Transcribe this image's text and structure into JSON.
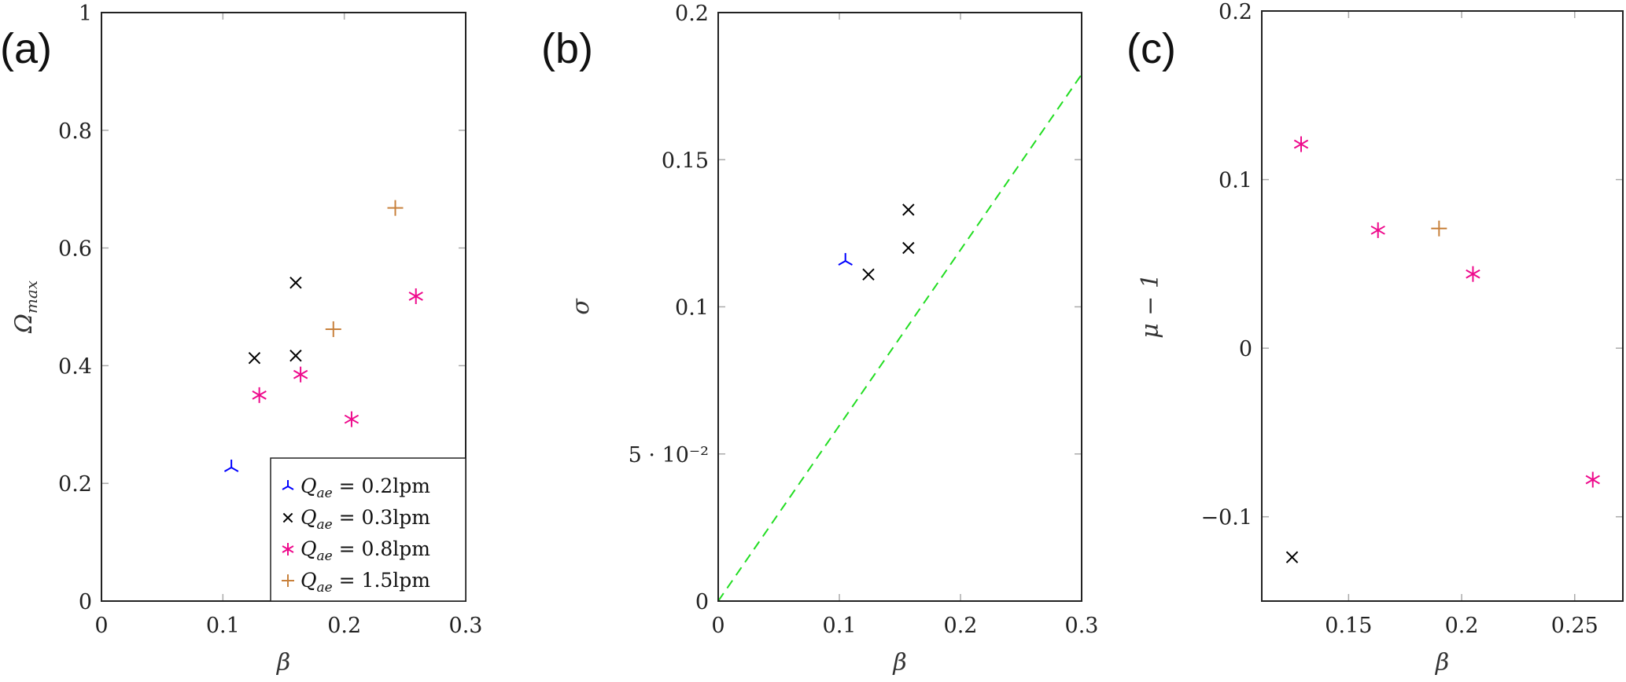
{
  "chart_data": [
    {
      "type": "scatter",
      "panel_label": "(a)",
      "xlabel": "β",
      "ylabel": "Ω",
      "ylabel_sub": "max",
      "xlim": [
        0,
        0.3
      ],
      "ylim": [
        0,
        1
      ],
      "xticks": [
        0,
        0.1,
        0.2,
        0.3
      ],
      "xtick_labels": [
        "0",
        "0.1",
        "0.2",
        "0.3"
      ],
      "yticks": [
        0,
        0.2,
        0.4,
        0.6,
        0.8,
        1
      ],
      "ytick_labels": [
        "0",
        "0.2",
        "0.4",
        "0.6",
        "0.8",
        "1"
      ],
      "legend_placement": "bottom-right",
      "series": [
        {
          "name": "Q_ae = 0.2lpm",
          "legend_sym": "Q",
          "legend_sub": "ae",
          "legend_text": " = 0.2lpm",
          "marker": "tri",
          "color": "#0000ff",
          "x": [
            0.107
          ],
          "y": [
            0.227
          ]
        },
        {
          "name": "Q_ae = 0.3lpm",
          "legend_sym": "Q",
          "legend_sub": "ae",
          "legend_text": " = 0.3lpm",
          "marker": "x",
          "color": "#000000",
          "x": [
            0.126,
            0.16,
            0.16
          ],
          "y": [
            0.413,
            0.541,
            0.417
          ]
        },
        {
          "name": "Q_ae = 0.8lpm",
          "legend_sym": "Q",
          "legend_sub": "ae",
          "legend_text": " = 0.8lpm",
          "marker": "star",
          "color": "#ee0a8c",
          "x": [
            0.13,
            0.164,
            0.206,
            0.259
          ],
          "y": [
            0.35,
            0.385,
            0.309,
            0.518
          ]
        },
        {
          "name": "Q_ae = 1.5lpm",
          "legend_sym": "Q",
          "legend_sub": "ae",
          "legend_text": " = 1.5lpm",
          "marker": "plus",
          "color": "#c8813c",
          "x": [
            0.191,
            0.242
          ],
          "y": [
            0.462,
            0.668
          ]
        }
      ]
    },
    {
      "type": "scatter",
      "panel_label": "(b)",
      "xlabel": "β",
      "ylabel": "σ",
      "ylabel_sub": "",
      "xlim": [
        0,
        0.3
      ],
      "ylim": [
        0,
        0.2
      ],
      "xticks": [
        0,
        0.1,
        0.2,
        0.3
      ],
      "xtick_labels": [
        "0",
        "0.1",
        "0.2",
        "0.3"
      ],
      "yticks": [
        0,
        0.05,
        0.1,
        0.15,
        0.2
      ],
      "ytick_labels": [
        "0",
        "5 · 10⁻²",
        "0.1",
        "0.15",
        "0.2"
      ],
      "reference_line": {
        "x": [
          0,
          0.3
        ],
        "y": [
          0,
          0.179
        ],
        "color": "#22dd22",
        "style": "dashed"
      },
      "series": [
        {
          "name": "Q_ae = 0.2lpm",
          "marker": "tri",
          "color": "#0000ff",
          "x": [
            0.105
          ],
          "y": [
            0.1156
          ]
        },
        {
          "name": "Q_ae = 0.3lpm",
          "marker": "x",
          "color": "#000000",
          "x": [
            0.124,
            0.157,
            0.157
          ],
          "y": [
            0.111,
            0.133,
            0.12
          ]
        }
      ]
    },
    {
      "type": "scatter",
      "panel_label": "(c)",
      "xlabel": "β",
      "ylabel": "μ − 1",
      "ylabel_sub": "",
      "xlim": [
        0.1116,
        0.2713
      ],
      "ylim": [
        -0.15,
        0.2
      ],
      "xticks": [
        0.15,
        0.2,
        0.25
      ],
      "xtick_labels": [
        "0.15",
        "0.2",
        "0.25"
      ],
      "yticks": [
        -0.1,
        0,
        0.1,
        0.2
      ],
      "ytick_labels": [
        "−0.1",
        "0",
        "0.1",
        "0.2"
      ],
      "series": [
        {
          "name": "Q_ae = 0.3lpm",
          "marker": "x",
          "color": "#000000",
          "x": [
            0.125
          ],
          "y": [
            -0.124
          ]
        },
        {
          "name": "Q_ae = 0.8lpm",
          "marker": "star",
          "color": "#ee0a8c",
          "x": [
            0.129,
            0.163,
            0.205,
            0.258
          ],
          "y": [
            0.121,
            0.07,
            0.044,
            -0.078
          ]
        },
        {
          "name": "Q_ae = 1.5lpm",
          "marker": "plus",
          "color": "#c8813c",
          "x": [
            0.19
          ],
          "y": [
            0.071
          ]
        }
      ]
    }
  ]
}
